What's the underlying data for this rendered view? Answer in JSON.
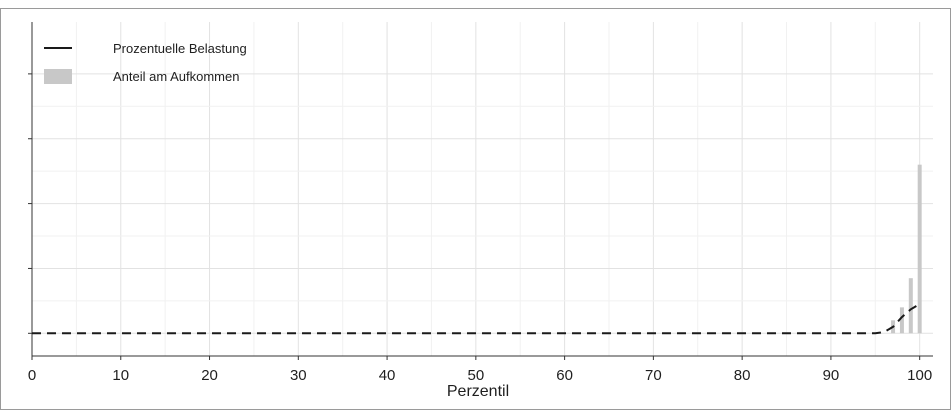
{
  "chart_data": {
    "type": "bar",
    "xlabel": "Perzentil",
    "ylabel": "",
    "xlim": [
      0,
      101.5
    ],
    "ylim": [
      -0.035,
      0.48
    ],
    "grid": true,
    "legend_position": "top-left",
    "x_ticks": [
      {
        "value": 0,
        "label": "0"
      },
      {
        "value": 10,
        "label": "10"
      },
      {
        "value": 20,
        "label": "20"
      },
      {
        "value": 30,
        "label": "30"
      },
      {
        "value": 40,
        "label": "40"
      },
      {
        "value": 50,
        "label": "50"
      },
      {
        "value": 60,
        "label": "60"
      },
      {
        "value": 70,
        "label": "70"
      },
      {
        "value": 80,
        "label": "80"
      },
      {
        "value": 90,
        "label": "90"
      },
      {
        "value": 100,
        "label": "100"
      }
    ],
    "y_ticks": [
      0,
      0.1,
      0.2,
      0.3,
      0.4
    ],
    "series": [
      {
        "name": "Anteil am Aufkommen",
        "kind": "bar",
        "color": "#c8c8c8",
        "x": [
          97,
          98,
          99,
          100
        ],
        "values": [
          0.02,
          0.04,
          0.085,
          0.26
        ]
      },
      {
        "name": "Prozentuelle Belastung",
        "kind": "line",
        "style": "dashed",
        "color": "#1a1a1a",
        "x": [
          0,
          95,
          96,
          97,
          98,
          99,
          100
        ],
        "values": [
          0,
          0,
          0.002,
          0.01,
          0.025,
          0.037,
          0.045
        ]
      }
    ]
  }
}
